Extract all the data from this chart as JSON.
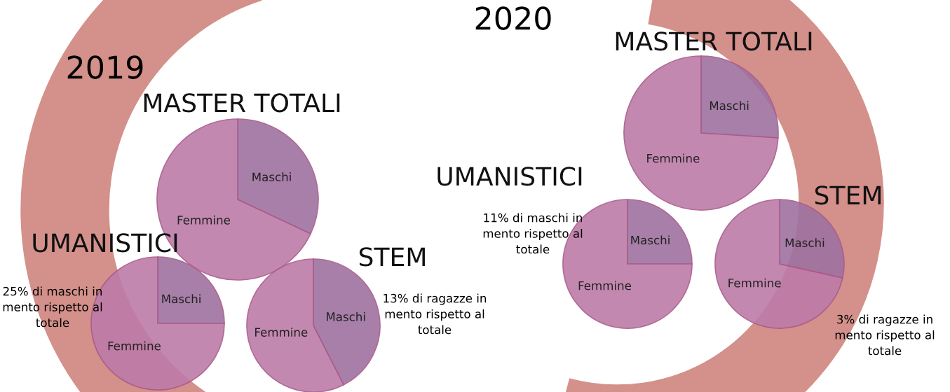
{
  "chart_data": [
    {
      "type": "pie",
      "title": "MASTER TOTALI",
      "categories": [
        "Maschi",
        "Femmine"
      ],
      "values": [
        32,
        68
      ],
      "colors": [
        "#9e72a0",
        "#bd7ca8"
      ],
      "annotations": [
        "2019"
      ]
    },
    {
      "type": "pie",
      "title": "UMANISTICI",
      "categories": [
        "Maschi",
        "Femmine"
      ],
      "values": [
        25,
        75
      ],
      "colors": [
        "#9e72a0",
        "#bd7ca8"
      ],
      "annotations": [
        "25% di maschi in mento rispetto al totale"
      ]
    },
    {
      "type": "pie",
      "title": "STEM",
      "categories": [
        "Maschi",
        "Femmine"
      ],
      "values": [
        42.5,
        57.5
      ],
      "colors": [
        "#9e72a0",
        "#bd7ca8"
      ],
      "annotations": [
        "13% di ragazze in mento rispetto al totale"
      ]
    },
    {
      "type": "pie",
      "title": "MASTER TOTALI",
      "categories": [
        "Maschi",
        "Femmine"
      ],
      "values": [
        26,
        74
      ],
      "colors": [
        "#9e72a0",
        "#bd7ca8"
      ],
      "annotations": [
        "2020"
      ]
    },
    {
      "type": "pie",
      "title": "UMANISTICI",
      "categories": [
        "Maschi",
        "Femmine"
      ],
      "values": [
        25,
        75
      ],
      "colors": [
        "#9e72a0",
        "#bd7ca8"
      ],
      "annotations": [
        "11% di maschi in mento rispetto al totale"
      ]
    },
    {
      "type": "pie",
      "title": "STEM",
      "categories": [
        "Maschi",
        "Femmine"
      ],
      "values": [
        28.5,
        71.5
      ],
      "colors": [
        "#9e72a0",
        "#bd7ca8"
      ],
      "annotations": [
        "3% di ragazze in mento rispetto al totale"
      ]
    }
  ]
}
